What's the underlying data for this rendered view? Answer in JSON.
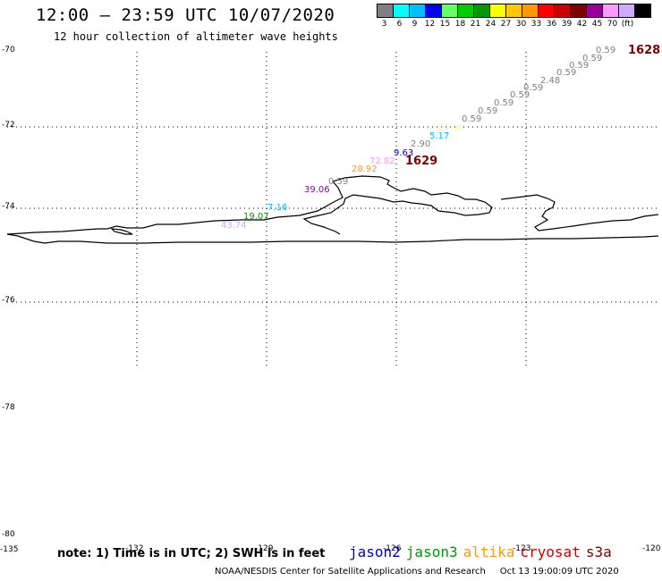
{
  "header": {
    "title": "12:00 – 23:59 UTC 10/07/2020",
    "subtitle": "12 hour collection of altimeter wave heights"
  },
  "legend": {
    "colors": [
      "#808080",
      "#00ffff",
      "#00bfff",
      "#0000ff",
      "#66ff66",
      "#00cc00",
      "#009900",
      "#ffff00",
      "#ffc800",
      "#ff9900",
      "#ff0000",
      "#cc0000",
      "#800000",
      "#990099",
      "#ff99ff",
      "#ccaaff",
      "#000000"
    ],
    "ticks": [
      "3",
      "6",
      "9",
      "12",
      "15",
      "18",
      "21",
      "24",
      "27",
      "30",
      "33",
      "36",
      "39",
      "42",
      "45",
      "70",
      "(ft)"
    ]
  },
  "map": {
    "lat_labels": [
      "-70",
      "-72",
      "-74",
      "-76",
      "-78",
      "-80"
    ],
    "lon_labels": [
      "-135",
      "-132",
      "-129",
      "-126",
      "-123",
      "-120"
    ],
    "track_ids": [
      {
        "label": "1628",
        "color": "#800000"
      },
      {
        "label": "1629",
        "color": "#800000"
      }
    ],
    "wave_heights": [
      {
        "label": "0.59",
        "color": "#808080"
      },
      {
        "label": "0.59",
        "color": "#808080"
      },
      {
        "label": "0.59",
        "color": "#808080"
      },
      {
        "label": "0.59",
        "color": "#808080"
      },
      {
        "label": "2.48",
        "color": "#808080"
      },
      {
        "label": "0.59",
        "color": "#808080"
      },
      {
        "label": "0.59",
        "color": "#808080"
      },
      {
        "label": "0.59",
        "color": "#808080"
      },
      {
        "label": "0.59",
        "color": "#808080"
      },
      {
        "label": "0.59",
        "color": "#808080"
      },
      {
        "label": "21.00",
        "color": "#ffff66"
      },
      {
        "label": "5.17",
        "color": "#00bfff"
      },
      {
        "label": "2.90",
        "color": "#808080"
      },
      {
        "label": "9.63",
        "color": "#0000cc"
      },
      {
        "label": "72.82",
        "color": "#ff99ff"
      },
      {
        "label": "28.92",
        "color": "#ff9900"
      },
      {
        "label": "0.59",
        "color": "#808080"
      },
      {
        "label": "39.06",
        "color": "#990099"
      },
      {
        "label": "7.16",
        "color": "#00bfff"
      },
      {
        "label": "19.07",
        "color": "#009900"
      },
      {
        "label": "43.74",
        "color": "#ccaaff"
      }
    ]
  },
  "footer": {
    "note": "note: 1) Time is in UTC; 2) SWH is in feet",
    "satellites": [
      {
        "name": "jason2",
        "color": "#0000cc"
      },
      {
        "name": "jason3",
        "color": "#009900"
      },
      {
        "name": "altika",
        "color": "#ff9900"
      },
      {
        "name": "cryosat",
        "color": "#cc0000"
      },
      {
        "name": "s3a",
        "color": "#800000"
      }
    ],
    "credit": "NOAA/NESDIS Center for Satellite Applications and Research",
    "timestamp": "Oct 13 19:00:09 UTC 2020"
  }
}
